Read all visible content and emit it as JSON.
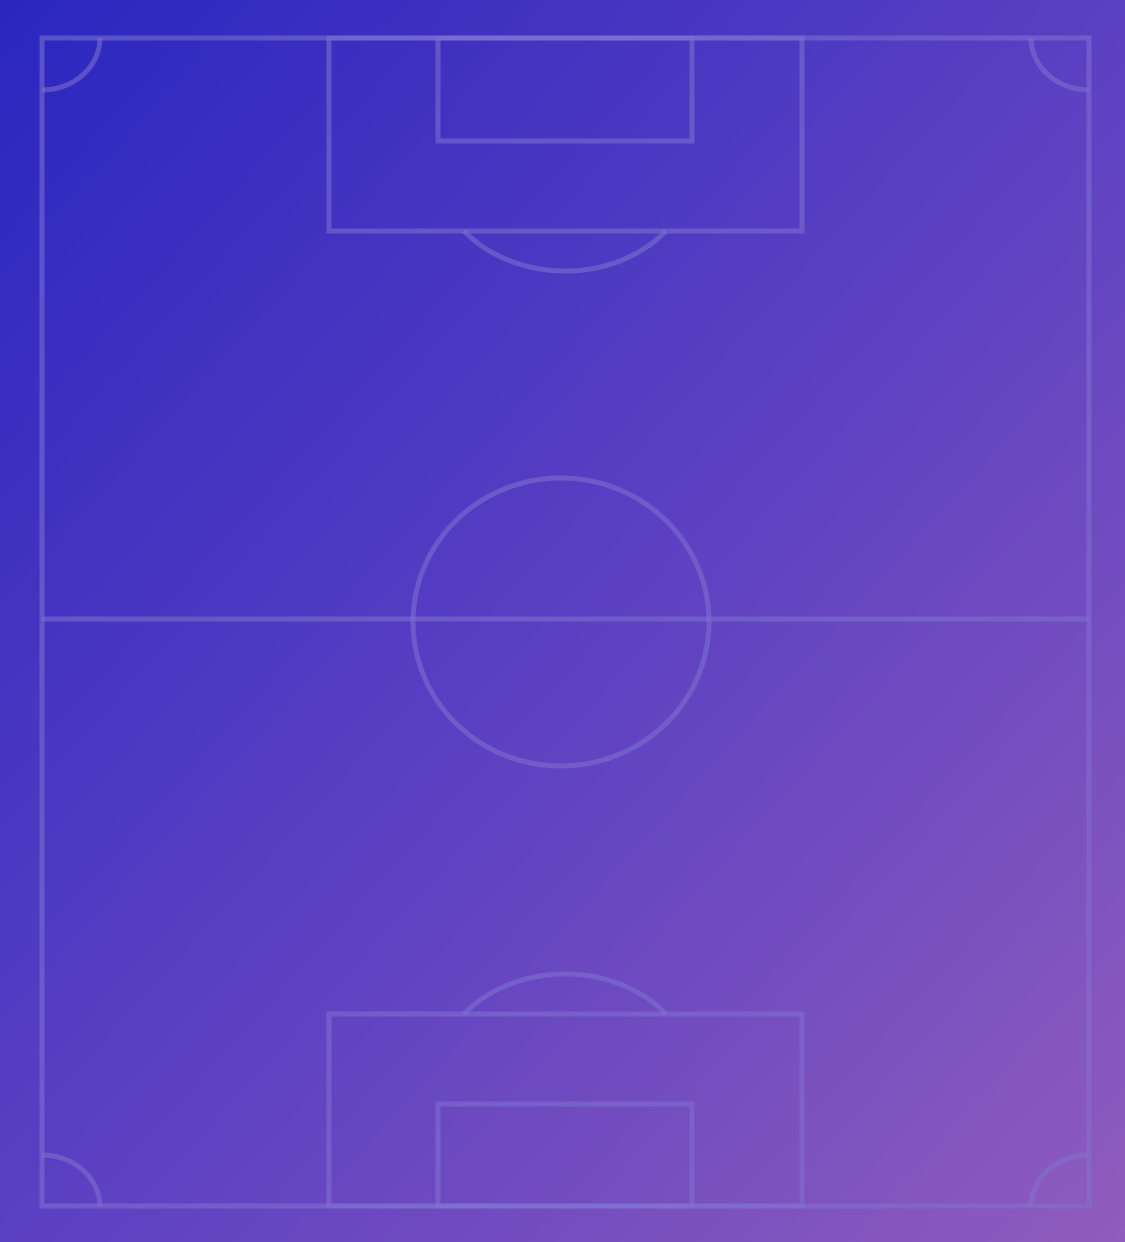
{
  "pitch": {
    "orientation": "vertical",
    "gradient_start": "#2a28c0",
    "gradient_end": "#8e5bbe",
    "line_color": "#7a6cc8"
  }
}
